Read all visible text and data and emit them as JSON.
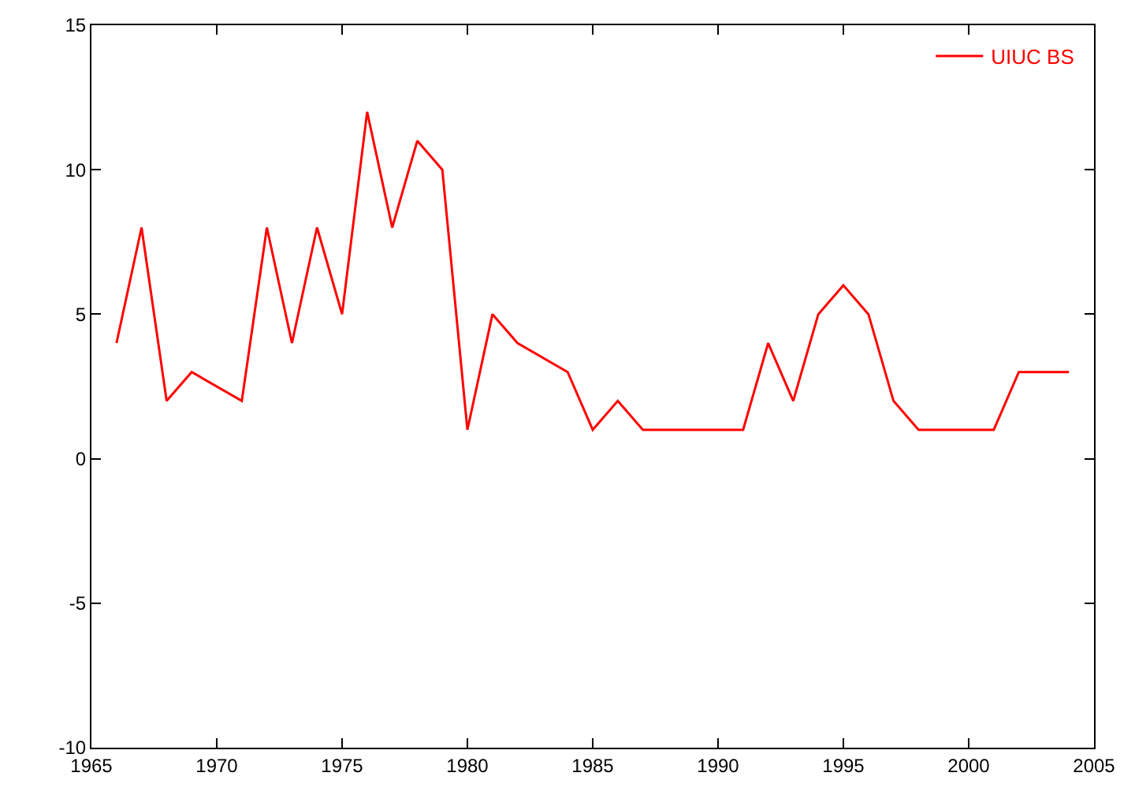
{
  "chart_data": {
    "type": "line",
    "xlim": [
      1965,
      2005
    ],
    "xticks": [
      1965,
      1970,
      1975,
      1980,
      1985,
      1990,
      1995,
      2000,
      2005
    ],
    "ylim": [
      -10,
      15
    ],
    "yticks": [
      -10,
      -5,
      0,
      5,
      10,
      15
    ],
    "grid": false,
    "legend": "top right",
    "marker": "none",
    "line_style": "solid",
    "series": [
      {
        "name": "UIUC BS",
        "color": "#ff0000",
        "x": [
          1966,
          1967,
          1968,
          1969,
          1971,
          1972,
          1973,
          1974,
          1975,
          1976,
          1977,
          1978,
          1979,
          1980,
          1981,
          1982,
          1984,
          1985,
          1986,
          1987,
          1991,
          1992,
          1993,
          1994,
          1995,
          1996,
          1997,
          1998,
          2001,
          2002,
          2004
        ],
        "values": [
          4,
          8,
          2,
          3,
          2,
          8,
          4,
          8,
          5,
          12,
          8,
          11,
          10,
          1,
          5,
          4,
          3,
          1,
          2,
          1,
          1,
          4,
          2,
          5,
          6,
          5,
          2,
          1,
          1,
          3,
          3
        ]
      }
    ]
  }
}
